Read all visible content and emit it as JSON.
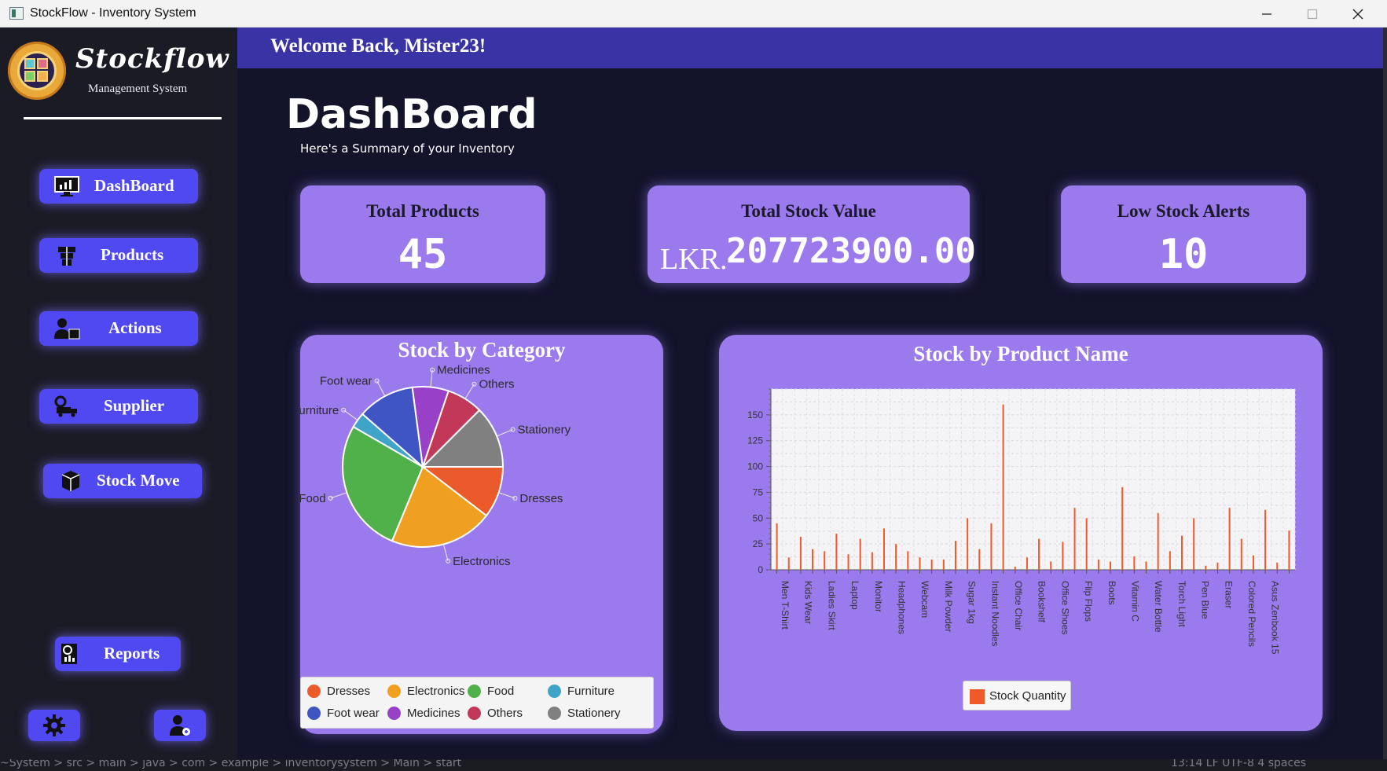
{
  "window": {
    "title": "StockFlow - Inventory System",
    "minimize_icon": "minimize-icon",
    "maximize_icon": "maximize-icon",
    "close_icon": "close-icon"
  },
  "brand": {
    "name": "Stockflow",
    "subtitle": "Management System"
  },
  "nav": {
    "dashboard": "DashBoard",
    "products": "Products",
    "actions": "Actions",
    "supplier": "Supplier",
    "stock_move": "Stock Move",
    "reports": "Reports"
  },
  "header": {
    "welcome": "Welcome Back, Mister23!"
  },
  "page": {
    "title": "DashBoard",
    "subtitle": "Here's a Summary of your Inventory"
  },
  "stats": {
    "total_products": {
      "label": "Total Products",
      "value": "45"
    },
    "total_stock_value": {
      "label": "Total Stock Value",
      "prefix": "LKR.",
      "value": "207723900.00"
    },
    "low_stock_alerts": {
      "label": "Low Stock Alerts",
      "value": "10"
    }
  },
  "status_bar": {
    "path": "~System > src > main > java > com > example > inventorysystem > Main > start",
    "right": "13:14   LF   UTF-8   4 spaces"
  },
  "colors": {
    "accent": "#5048f0",
    "card": "#9b7aee",
    "header": "#3a33a5",
    "background": "#13132a"
  },
  "chart_data": [
    {
      "type": "pie",
      "title": "Stock by Category",
      "slices": [
        {
          "label": "Dresses",
          "value": 10,
          "color": "#ea5a2a"
        },
        {
          "label": "Electronics",
          "value": 20,
          "color": "#f0a020"
        },
        {
          "label": "Food",
          "value": 26,
          "color": "#50b04a"
        },
        {
          "label": "Furniture",
          "value": 3,
          "color": "#3fa4c8"
        },
        {
          "label": "Foot wear",
          "value": 11,
          "color": "#3f55c4"
        },
        {
          "label": "Medicines",
          "value": 7,
          "color": "#9840c8"
        },
        {
          "label": "Others",
          "value": 7,
          "color": "#c23858"
        },
        {
          "label": "Stationery",
          "value": 12,
          "color": "#808080"
        }
      ],
      "legend": [
        "Dresses",
        "Electronics",
        "Food",
        "Furniture",
        "Foot wear",
        "Medicines",
        "Others",
        "Stationery"
      ],
      "legend_position": "bottom"
    },
    {
      "type": "bar",
      "title": "Stock by Product Name",
      "series": [
        {
          "name": "Stock Quantity",
          "color": "#ee5a2a",
          "values": [
            45,
            12,
            32,
            20,
            18,
            35,
            15,
            30,
            17,
            40,
            25,
            18,
            12,
            10,
            10,
            28,
            50,
            20,
            45,
            160,
            3,
            12,
            30,
            8,
            27,
            60,
            50,
            10,
            8,
            80,
            13,
            8,
            55,
            18,
            33,
            50,
            4,
            7,
            60,
            30,
            14,
            58,
            7,
            38
          ]
        }
      ],
      "tick_labels": [
        "Men T-Shirt",
        "Kids Wear",
        "Ladies Skirt",
        "Laptop",
        "Monitor",
        "Headphones",
        "Webcam",
        "Milk Powder",
        "Sugar 1kg",
        "Instant Noodles",
        "Office Chair",
        "Bookshelf",
        "Office Shoes",
        "Flip Flops",
        "Boots",
        "Vitamin C",
        "Water Bottle",
        "Torch Light",
        "Pen Blue",
        "Eraser",
        "Colored Pencils",
        "Asus Zenbook 15"
      ],
      "y_ticks": [
        0,
        25,
        50,
        75,
        100,
        125,
        150
      ],
      "ylim": [
        0,
        175
      ],
      "grid": true,
      "legend": [
        "Stock Quantity"
      ],
      "legend_position": "bottom"
    }
  ]
}
